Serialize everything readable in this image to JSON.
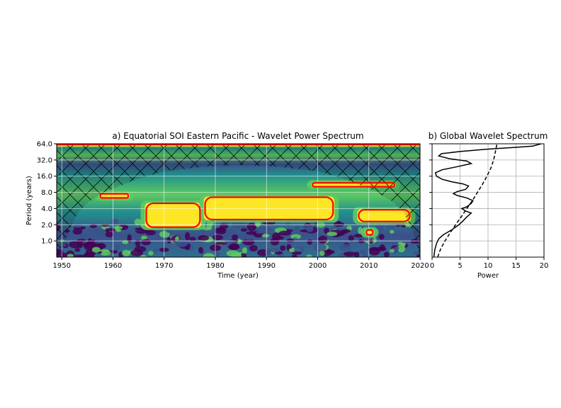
{
  "chart_data": [
    {
      "type": "heatmap",
      "title": "a) Equatorial SOI Eastern Pacific - Wavelet Power Spectrum",
      "xlabel": "Time (year)",
      "ylabel": "Period (years)",
      "x_ticks": [
        1950,
        1960,
        1970,
        1980,
        1990,
        2000,
        2010,
        2020
      ],
      "y_ticks": [
        1.0,
        2.0,
        4.0,
        8.0,
        16.0,
        32.0,
        64.0
      ],
      "y_tick_labels": [
        "1.0",
        "2.0",
        "4.0",
        "8.0",
        "16.0",
        "32.0",
        "64.0"
      ],
      "y_scale": "log2",
      "xlim": [
        1949,
        2020
      ],
      "ylim": [
        0.5,
        64
      ],
      "grid": true,
      "colormap": [
        "#440154",
        "#3b528b",
        "#21918c",
        "#5ec962",
        "#fde725"
      ],
      "significance_color": "#ff0000",
      "significant_regions": [
        {
          "start": 1957.5,
          "end": 1963,
          "period_low": 6.3,
          "period_high": 7.5
        },
        {
          "start": 1966.5,
          "end": 1977,
          "period_low": 1.8,
          "period_high": 5.0
        },
        {
          "start": 1978,
          "end": 2003,
          "period_low": 2.5,
          "period_high": 6.5
        },
        {
          "start": 1999,
          "end": 2015,
          "period_low": 10.2,
          "period_high": 12.0
        },
        {
          "start": 2008,
          "end": 2018,
          "period_low": 2.3,
          "period_high": 3.8
        },
        {
          "start": 2009.5,
          "end": 2010.8,
          "period_low": 1.3,
          "period_high": 1.6
        }
      ],
      "cone_of_influence": "hatched"
    },
    {
      "type": "line",
      "title": "b) Global Wavelet Spectrum",
      "xlabel": "Power",
      "x_ticks": [
        0,
        5,
        10,
        15,
        20
      ],
      "xlim": [
        0,
        20
      ],
      "y_scale": "log2",
      "ylim": [
        0.5,
        64
      ],
      "grid": true,
      "series": [
        {
          "style": "solid",
          "points": [
            [
              0.3,
              0.5
            ],
            [
              0.5,
              0.7
            ],
            [
              0.8,
              0.9
            ],
            [
              1.2,
              1.1
            ],
            [
              2.0,
              1.3
            ],
            [
              3.5,
              1.6
            ],
            [
              4.8,
              2.0
            ],
            [
              5.6,
              2.4
            ],
            [
              6.2,
              2.8
            ],
            [
              7.0,
              3.3
            ],
            [
              6.0,
              3.6
            ],
            [
              5.3,
              4.0
            ],
            [
              6.2,
              4.3
            ],
            [
              7.0,
              5.0
            ],
            [
              7.3,
              5.6
            ],
            [
              6.2,
              6.3
            ],
            [
              4.5,
              7.0
            ],
            [
              3.8,
              7.6
            ],
            [
              4.5,
              8.3
            ],
            [
              6.0,
              9.1
            ],
            [
              6.5,
              10.5
            ],
            [
              5.5,
              11.5
            ],
            [
              3.5,
              12.6
            ],
            [
              1.8,
              14.0
            ],
            [
              0.8,
              16.0
            ],
            [
              0.6,
              18.5
            ],
            [
              1.8,
              21.0
            ],
            [
              4.5,
              24.0
            ],
            [
              7.0,
              27.5
            ],
            [
              6.2,
              30.5
            ],
            [
              3.0,
              34.0
            ],
            [
              1.2,
              38.0
            ],
            [
              1.7,
              42.0
            ],
            [
              5.0,
              46.0
            ],
            [
              10.0,
              51.0
            ],
            [
              15.0,
              55.0
            ],
            [
              18.0,
              58.0
            ],
            [
              19.5,
              64.0
            ]
          ]
        },
        {
          "style": "dashed",
          "points": [
            [
              1.0,
              0.5
            ],
            [
              1.5,
              0.7
            ],
            [
              2.3,
              1.0
            ],
            [
              3.2,
              1.4
            ],
            [
              4.2,
              2.0
            ],
            [
              5.2,
              2.8
            ],
            [
              6.2,
              4.0
            ],
            [
              7.2,
              5.6
            ],
            [
              8.1,
              8.0
            ],
            [
              9.0,
              11.3
            ],
            [
              9.8,
              16.0
            ],
            [
              10.5,
              22.6
            ],
            [
              11.0,
              32.0
            ],
            [
              11.3,
              45.0
            ],
            [
              11.6,
              64.0
            ]
          ]
        }
      ]
    }
  ]
}
